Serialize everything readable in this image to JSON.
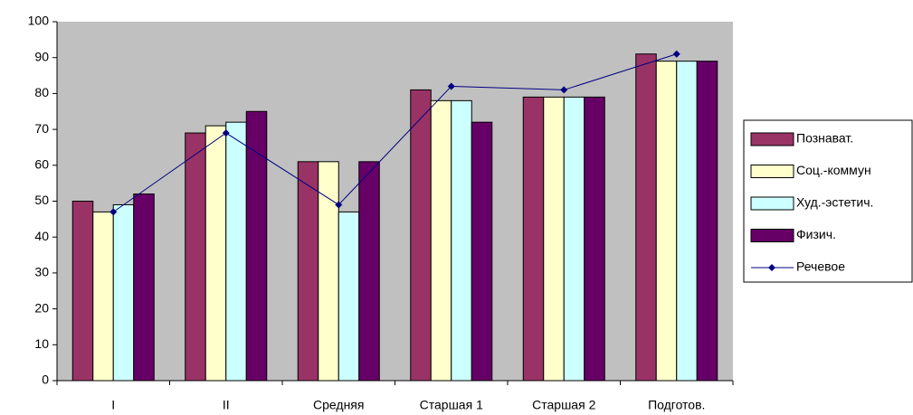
{
  "chart_data": {
    "type": "bar",
    "categories": [
      "I",
      "II",
      "Средняя",
      "Старшая 1",
      "Старшая 2",
      "Подготов."
    ],
    "series": [
      {
        "name": "Познават.",
        "color": "#993366",
        "values": [
          50,
          69,
          61,
          81,
          79,
          91
        ]
      },
      {
        "name": "Соц.-коммун",
        "color": "#ffffcc",
        "values": [
          47,
          71,
          61,
          78,
          79,
          89
        ]
      },
      {
        "name": "Худ.-эстетич.",
        "color": "#ccffff",
        "values": [
          49,
          72,
          47,
          78,
          79,
          89
        ]
      },
      {
        "name": "Физич.",
        "color": "#660066",
        "values": [
          52,
          75,
          61,
          72,
          79,
          89
        ]
      },
      {
        "name": "Речевое",
        "color": "#000080",
        "type": "line",
        "values": [
          47,
          69,
          49,
          82,
          81,
          91
        ]
      }
    ],
    "ylim": [
      0,
      100
    ],
    "yticks": [
      0,
      10,
      20,
      30,
      40,
      50,
      60,
      70,
      80,
      90,
      100
    ],
    "grid": false,
    "legend": "right",
    "plot_background": "#c0c0c0"
  }
}
